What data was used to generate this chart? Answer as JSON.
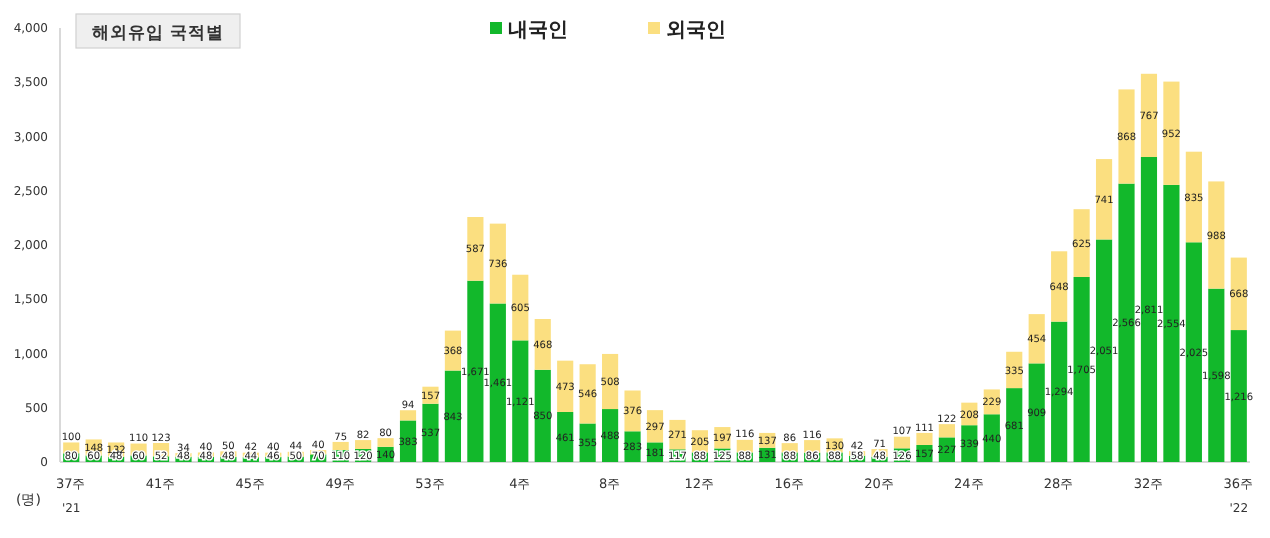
{
  "chart_data": {
    "type": "bar",
    "stacked": true,
    "title": "해외유입 국적별",
    "ylabel": "(명)",
    "legend": "top",
    "categories": [
      "37주",
      null,
      null,
      null,
      "41주",
      null,
      null,
      null,
      "45주",
      null,
      null,
      null,
      "49주",
      null,
      null,
      null,
      "53주",
      null,
      null,
      null,
      "4주",
      null,
      null,
      null,
      "8주",
      null,
      null,
      null,
      "12주",
      null,
      null,
      null,
      "16주",
      null,
      null,
      null,
      "20주",
      null,
      null,
      null,
      "24주",
      null,
      null,
      null,
      "28주",
      null,
      null,
      null,
      "32주",
      null,
      null,
      null,
      "36주"
    ],
    "series": [
      {
        "name": "내국인",
        "color": "#12b82b",
        "values": [
          80,
          60,
          48,
          60,
          52,
          48,
          48,
          48,
          44,
          46,
          50,
          70,
          110,
          120,
          140,
          383,
          537,
          843,
          1671,
          1461,
          1121,
          850,
          461,
          355,
          488,
          283,
          181,
          117,
          88,
          125,
          88,
          131,
          88,
          86,
          88,
          58,
          48,
          126,
          157,
          227,
          339,
          440,
          681,
          909,
          1294,
          1705,
          2051,
          2566,
          2811,
          2554,
          2025,
          1598,
          1216
        ],
        "value_labels": [
          "80",
          "60",
          "48",
          "60",
          "52",
          "48",
          "48",
          "48",
          "44",
          "46",
          "50",
          "70",
          "110",
          "120",
          "140",
          "383",
          "537",
          "843",
          "1,671",
          "1,461",
          "1,121",
          "850",
          "461",
          "355",
          "488",
          "283",
          "181",
          "117",
          "88",
          "125",
          "88",
          "131",
          "88",
          "86",
          "88",
          "58",
          "48",
          "126",
          "157",
          "227",
          "339",
          "440",
          "681",
          "909",
          "1,294",
          "1,705",
          "2,051",
          "2,566",
          "2,811",
          "2,554",
          "2,025",
          "1,598",
          "1,216"
        ]
      },
      {
        "name": "외국인",
        "color": "#fbdf80",
        "values": [
          100,
          148,
          132,
          110,
          123,
          34,
          40,
          50,
          42,
          40,
          44,
          40,
          75,
          82,
          80,
          94,
          157,
          368,
          587,
          736,
          605,
          468,
          473,
          546,
          508,
          376,
          297,
          271,
          205,
          197,
          116,
          137,
          86,
          116,
          130,
          42,
          71,
          107,
          111,
          122,
          208,
          229,
          335,
          454,
          648,
          625,
          741,
          868,
          767,
          952,
          835,
          988,
          668
        ],
        "value_labels": [
          "100",
          "148",
          "132",
          "110",
          "123",
          "34",
          "40",
          "50",
          "42",
          "40",
          "44",
          "40",
          "75",
          "82",
          "80",
          "94",
          "157",
          "368",
          "587",
          "736",
          "605",
          "468",
          "473",
          "546",
          "508",
          "376",
          "297",
          "271",
          "205",
          "197",
          "116",
          "137",
          "86",
          "116",
          "130",
          "42",
          "71",
          "107",
          "111",
          "122",
          "208",
          "229",
          "335",
          "454",
          "648",
          "625",
          "741",
          "868",
          "767",
          "952",
          "835",
          "988",
          "668"
        ]
      }
    ],
    "ylim": [
      0,
      4000
    ],
    "yticks": [
      {
        "value": 0,
        "label": "0"
      },
      {
        "value": 500,
        "label": "500"
      },
      {
        "value": 1000,
        "label": "1,000"
      },
      {
        "value": 1500,
        "label": "1,500"
      },
      {
        "value": 2000,
        "label": "2,000"
      },
      {
        "value": 2500,
        "label": "2,500"
      },
      {
        "value": 3000,
        "label": "3,000"
      },
      {
        "value": 3500,
        "label": "3,500"
      },
      {
        "value": 4000,
        "label": "4,000"
      }
    ],
    "annotations": [
      "'21",
      "'22"
    ]
  }
}
